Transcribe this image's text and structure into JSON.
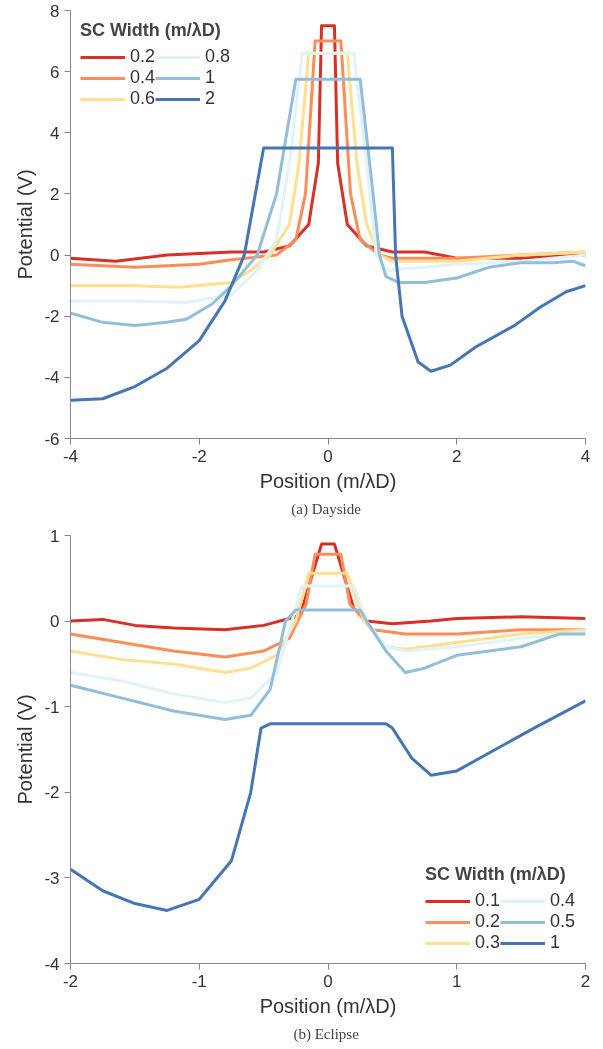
{
  "chart_data": [
    {
      "type": "line",
      "xlabel": "Position (m/λD)",
      "ylabel": "Potential (V)",
      "legend_title": "SC Width (m/λD)",
      "legend": "top left",
      "grid": false,
      "line_style": "solid",
      "marker": "none",
      "annotations": [
        "(a)  Dayside"
      ],
      "xlim": [
        -4,
        4
      ],
      "xticks": [
        -4,
        -2,
        0,
        2,
        4
      ],
      "ylim": [
        -6,
        8
      ],
      "yticks": [
        -6,
        -4,
        -2,
        0,
        2,
        4,
        6,
        8
      ],
      "series": [
        {
          "name": "0.2",
          "color": "#d73027",
          "x": [
            -4,
            -3.3,
            -2.5,
            -1.5,
            -1,
            -0.6,
            -0.3,
            -0.15,
            -0.1,
            0.1,
            0.15,
            0.3,
            0.6,
            1,
            1.5,
            2,
            3,
            4
          ],
          "values": [
            -0.1,
            -0.2,
            0,
            0.1,
            0.1,
            0.3,
            1,
            3,
            7.5,
            7.5,
            3,
            1,
            0.3,
            0.1,
            0.1,
            -0.1,
            -0.1,
            0
          ]
        },
        {
          "name": "0.4",
          "color": "#fc8d59",
          "x": [
            -4,
            -3,
            -2,
            -1.5,
            -0.8,
            -0.5,
            -0.35,
            -0.2,
            0.2,
            0.35,
            0.5,
            0.8,
            1,
            2,
            3,
            4
          ],
          "values": [
            -0.3,
            -0.4,
            -0.3,
            -0.15,
            0,
            0.5,
            2,
            7,
            7,
            2,
            0.5,
            0,
            -0.1,
            -0.1,
            0,
            0.1
          ]
        },
        {
          "name": "0.6",
          "color": "#fee090",
          "x": [
            -4,
            -3,
            -2.3,
            -1.5,
            -1.2,
            -0.9,
            -0.6,
            -0.45,
            -0.3,
            0.3,
            0.45,
            0.6,
            0.8,
            1,
            2,
            3,
            4
          ],
          "values": [
            -1,
            -1,
            -1.05,
            -0.9,
            -0.5,
            0,
            1,
            3,
            6.6,
            6.6,
            3,
            1,
            0,
            -0.2,
            -0.2,
            0,
            0.1
          ]
        },
        {
          "name": "0.8",
          "color": "#e0f3f8",
          "x": [
            -4,
            -3,
            -2.2,
            -1.5,
            -1.1,
            -0.8,
            -0.6,
            -0.4,
            0.4,
            0.6,
            0.75,
            0.9,
            1.5,
            2,
            3,
            4
          ],
          "values": [
            -1.5,
            -1.5,
            -1.55,
            -1.3,
            -0.5,
            0.5,
            3,
            6.6,
            6.6,
            3,
            0,
            -0.5,
            -0.4,
            -0.3,
            -0.2,
            0
          ]
        },
        {
          "name": "1",
          "color": "#91bfdb",
          "x": [
            -4,
            -3.5,
            -3,
            -2.5,
            -2.2,
            -1.8,
            -1.5,
            -1.1,
            -0.8,
            -0.5,
            0.5,
            0.7,
            0.8,
            0.9,
            1.1,
            1.5,
            2,
            2.5,
            3,
            3.5,
            3.8,
            4
          ],
          "values": [
            -1.9,
            -2.2,
            -2.3,
            -2.2,
            -2.1,
            -1.6,
            -1,
            0,
            2,
            5.75,
            5.75,
            2,
            0,
            -0.7,
            -0.9,
            -0.9,
            -0.75,
            -0.4,
            -0.25,
            -0.25,
            -0.2,
            -0.35
          ]
        },
        {
          "name": "2",
          "color": "#4575b4",
          "x": [
            -4,
            -3.5,
            -3,
            -2.5,
            -2,
            -1.6,
            -1.3,
            -1,
            1,
            1.05,
            1.15,
            1.4,
            1.6,
            1.9,
            2.3,
            2.9,
            3.3,
            3.7,
            4
          ],
          "values": [
            -4.75,
            -4.7,
            -4.3,
            -3.7,
            -2.8,
            -1.5,
            0,
            3.5,
            3.5,
            0,
            -2,
            -3.5,
            -3.8,
            -3.6,
            -3,
            -2.3,
            -1.7,
            -1.2,
            -1
          ]
        }
      ]
    },
    {
      "type": "line",
      "xlabel": "Position (m/λD)",
      "ylabel": "Potential (V)",
      "legend_title": "SC Width (m/λD)",
      "legend": "bottom right",
      "grid": false,
      "line_style": "solid",
      "marker": "none",
      "annotations": [
        "(b)  Eclipse"
      ],
      "xlim": [
        -2,
        2
      ],
      "xticks": [
        -2,
        -1,
        0,
        1,
        2
      ],
      "ylim": [
        -4,
        1
      ],
      "yticks": [
        -4,
        -3,
        -2,
        -1,
        0,
        1
      ],
      "series": [
        {
          "name": "0.1",
          "color": "#d73027",
          "x": [
            -2,
            -1.75,
            -1.5,
            -1.2,
            -0.8,
            -0.5,
            -0.25,
            -0.2,
            -0.05,
            0.05,
            0.2,
            0.3,
            0.5,
            0.8,
            1,
            1.5,
            2
          ],
          "values": [
            0,
            0.02,
            -0.05,
            -0.08,
            -0.1,
            -0.05,
            0.05,
            0.15,
            0.9,
            0.9,
            0.15,
            0,
            -0.03,
            0,
            0.03,
            0.05,
            0.03
          ]
        },
        {
          "name": "0.2",
          "color": "#fc8d59",
          "x": [
            -2,
            -1.6,
            -1.2,
            -0.8,
            -0.5,
            -0.3,
            -0.17,
            -0.1,
            0.1,
            0.17,
            0.35,
            0.6,
            1,
            1.5,
            2
          ],
          "values": [
            -0.15,
            -0.25,
            -0.35,
            -0.42,
            -0.35,
            -0.2,
            0.2,
            0.78,
            0.78,
            0.2,
            -0.1,
            -0.15,
            -0.15,
            -0.1,
            -0.1
          ]
        },
        {
          "name": "0.3",
          "color": "#fee090",
          "x": [
            -2,
            -1.6,
            -1.2,
            -0.8,
            -0.6,
            -0.4,
            -0.25,
            -0.15,
            0.15,
            0.28,
            0.45,
            0.6,
            1,
            1.5,
            2
          ],
          "values": [
            -0.35,
            -0.45,
            -0.5,
            -0.6,
            -0.55,
            -0.4,
            0,
            0.56,
            0.56,
            0,
            -0.3,
            -0.33,
            -0.25,
            -0.15,
            -0.1
          ]
        },
        {
          "name": "0.4",
          "color": "#e0f3f8",
          "x": [
            -2,
            -1.6,
            -1.2,
            -0.8,
            -0.6,
            -0.4,
            -0.28,
            -0.2,
            0.2,
            0.3,
            0.45,
            0.6,
            1,
            1.5,
            2
          ],
          "values": [
            -0.6,
            -0.7,
            -0.85,
            -0.95,
            -0.9,
            -0.6,
            0,
            0.41,
            0.41,
            0,
            -0.3,
            -0.35,
            -0.3,
            -0.2,
            -0.12
          ]
        },
        {
          "name": "0.5",
          "color": "#91bfdb",
          "x": [
            -2,
            -1.6,
            -1.2,
            -0.8,
            -0.6,
            -0.45,
            -0.33,
            -0.25,
            0.25,
            0.3,
            0.45,
            0.6,
            0.75,
            1,
            1.5,
            1.8,
            2
          ],
          "values": [
            -0.75,
            -0.9,
            -1.05,
            -1.15,
            -1.1,
            -0.8,
            0,
            0.13,
            0.13,
            0,
            -0.35,
            -0.6,
            -0.55,
            -0.4,
            -0.3,
            -0.15,
            -0.15
          ]
        },
        {
          "name": "1",
          "color": "#4575b4",
          "x": [
            -2,
            -1.75,
            -1.5,
            -1.25,
            -1,
            -0.75,
            -0.6,
            -0.52,
            -0.45,
            0.45,
            0.5,
            0.65,
            0.8,
            1,
            1.3,
            1.6,
            2
          ],
          "values": [
            -2.9,
            -3.15,
            -3.3,
            -3.38,
            -3.25,
            -2.8,
            -2,
            -1.25,
            -1.2,
            -1.2,
            -1.25,
            -1.6,
            -1.8,
            -1.75,
            -1.5,
            -1.25,
            -0.93
          ]
        }
      ]
    }
  ]
}
